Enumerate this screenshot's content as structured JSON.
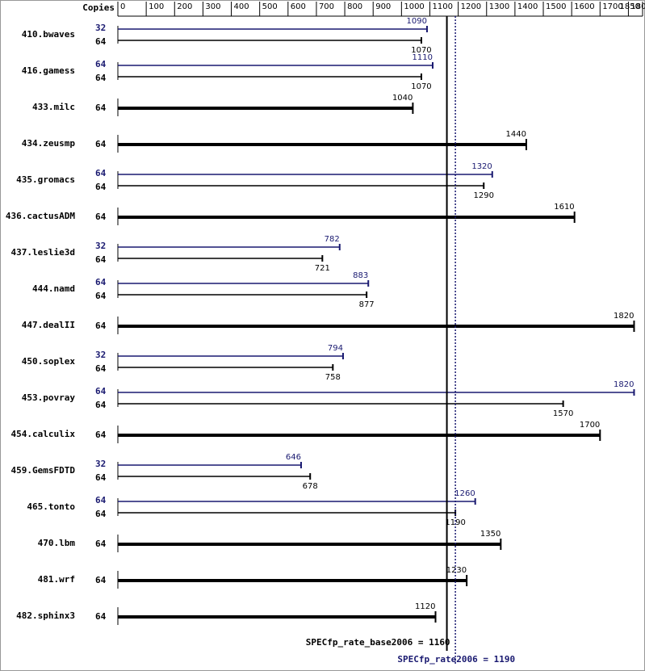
{
  "chart_data": {
    "type": "bar",
    "orientation": "horizontal",
    "copies_label": "Copies",
    "xlim": [
      0,
      1850
    ],
    "xticks": [
      0,
      100,
      200,
      300,
      400,
      500,
      600,
      700,
      800,
      900,
      1000,
      1100,
      1200,
      1300,
      1400,
      1500,
      1600,
      1700,
      1800,
      1850
    ],
    "base_color": "#000000",
    "peak_color": "#191970",
    "benchmarks": [
      {
        "name": "410.bwaves",
        "peak_copies": "32",
        "peak": 1090,
        "base_copies": "64",
        "base": 1070
      },
      {
        "name": "416.gamess",
        "peak_copies": "64",
        "peak": 1110,
        "base_copies": "64",
        "base": 1070
      },
      {
        "name": "433.milc",
        "base_copies": "64",
        "base": 1040
      },
      {
        "name": "434.zeusmp",
        "base_copies": "64",
        "base": 1440
      },
      {
        "name": "435.gromacs",
        "peak_copies": "64",
        "peak": 1320,
        "base_copies": "64",
        "base": 1290
      },
      {
        "name": "436.cactusADM",
        "base_copies": "64",
        "base": 1610
      },
      {
        "name": "437.leslie3d",
        "peak_copies": "32",
        "peak": 782,
        "base_copies": "64",
        "base": 721
      },
      {
        "name": "444.namd",
        "peak_copies": "64",
        "peak": 883,
        "base_copies": "64",
        "base": 877
      },
      {
        "name": "447.dealII",
        "base_copies": "64",
        "base": 1820
      },
      {
        "name": "450.soplex",
        "peak_copies": "32",
        "peak": 794,
        "base_copies": "64",
        "base": 758
      },
      {
        "name": "453.povray",
        "peak_copies": "64",
        "peak": 1820,
        "base_copies": "64",
        "base": 1570
      },
      {
        "name": "454.calculix",
        "base_copies": "64",
        "base": 1700
      },
      {
        "name": "459.GemsFDTD",
        "peak_copies": "32",
        "peak": 646,
        "base_copies": "64",
        "base": 678
      },
      {
        "name": "465.tonto",
        "peak_copies": "64",
        "peak": 1260,
        "base_copies": "64",
        "base": 1190
      },
      {
        "name": "470.lbm",
        "base_copies": "64",
        "base": 1350
      },
      {
        "name": "481.wrf",
        "base_copies": "64",
        "base": 1230
      },
      {
        "name": "482.sphinx3",
        "base_copies": "64",
        "base": 1120
      }
    ],
    "base_metric": {
      "label": "SPECfp_rate_base2006 = 1160",
      "value": 1160
    },
    "peak_metric": {
      "label": "SPECfp_rate2006 = 1190",
      "value": 1190
    }
  }
}
